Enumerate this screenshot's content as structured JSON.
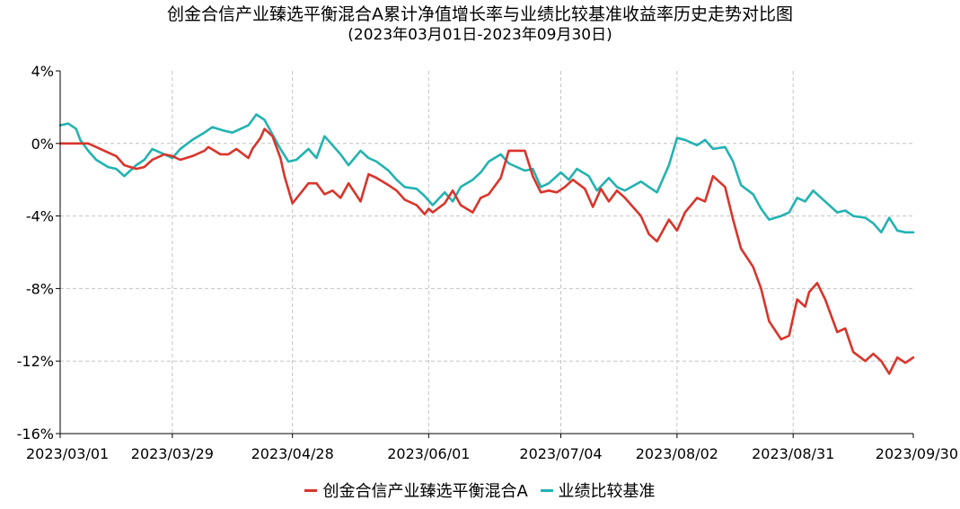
{
  "chart_data": {
    "type": "line",
    "title": "创金合信产业臻选平衡混合A累计净值增长率与业绩比较基准收益率历史走势对比图",
    "subtitle": "(2023年03月01日-2023年09月30日)",
    "x_tick_labels": [
      "2023/03/01",
      "2023/03/29",
      "2023/04/28",
      "2023/06/01",
      "2023/07/04",
      "2023/08/02",
      "2023/08/31",
      "2023/09/30"
    ],
    "y_tick_labels": [
      "4%",
      "0%",
      "-4%",
      "-8%",
      "-12%",
      "-16%"
    ],
    "y_ticks": [
      4,
      0,
      -4,
      -8,
      -12,
      -16
    ],
    "ylim": [
      -16,
      4
    ],
    "x_range": [
      "2023-03-01",
      "2023-09-30"
    ],
    "grid": true,
    "legend_position": "bottom",
    "series": [
      {
        "name": "创金合信产业臻选平衡混合A",
        "color": "#d9342b",
        "points": [
          [
            "2023-03-01",
            0.0
          ],
          [
            "2023-03-03",
            0.0
          ],
          [
            "2023-03-06",
            0.0
          ],
          [
            "2023-03-08",
            0.0
          ],
          [
            "2023-03-10",
            -0.2
          ],
          [
            "2023-03-13",
            -0.5
          ],
          [
            "2023-03-15",
            -0.7
          ],
          [
            "2023-03-17",
            -1.2
          ],
          [
            "2023-03-20",
            -1.4
          ],
          [
            "2023-03-22",
            -1.3
          ],
          [
            "2023-03-24",
            -0.9
          ],
          [
            "2023-03-27",
            -0.6
          ],
          [
            "2023-03-29",
            -0.7
          ],
          [
            "2023-03-31",
            -0.9
          ],
          [
            "2023-04-03",
            -0.7
          ],
          [
            "2023-04-06",
            -0.4
          ],
          [
            "2023-04-07",
            -0.2
          ],
          [
            "2023-04-10",
            -0.6
          ],
          [
            "2023-04-12",
            -0.6
          ],
          [
            "2023-04-14",
            -0.3
          ],
          [
            "2023-04-17",
            -0.8
          ],
          [
            "2023-04-18",
            -0.3
          ],
          [
            "2023-04-20",
            0.3
          ],
          [
            "2023-04-21",
            0.8
          ],
          [
            "2023-04-23",
            0.4
          ],
          [
            "2023-04-25",
            -0.8
          ],
          [
            "2023-04-26",
            -1.8
          ],
          [
            "2023-04-28",
            -3.3
          ],
          [
            "2023-05-02",
            -2.2
          ],
          [
            "2023-05-04",
            -2.2
          ],
          [
            "2023-05-06",
            -2.8
          ],
          [
            "2023-05-08",
            -2.6
          ],
          [
            "2023-05-10",
            -3.0
          ],
          [
            "2023-05-12",
            -2.2
          ],
          [
            "2023-05-15",
            -3.2
          ],
          [
            "2023-05-17",
            -1.7
          ],
          [
            "2023-05-19",
            -1.9
          ],
          [
            "2023-05-22",
            -2.3
          ],
          [
            "2023-05-24",
            -2.6
          ],
          [
            "2023-05-26",
            -3.1
          ],
          [
            "2023-05-29",
            -3.4
          ],
          [
            "2023-05-31",
            -3.9
          ],
          [
            "2023-06-01",
            -3.6
          ],
          [
            "2023-06-02",
            -3.8
          ],
          [
            "2023-06-05",
            -3.3
          ],
          [
            "2023-06-07",
            -2.6
          ],
          [
            "2023-06-09",
            -3.4
          ],
          [
            "2023-06-12",
            -3.8
          ],
          [
            "2023-06-14",
            -3.0
          ],
          [
            "2023-06-16",
            -2.8
          ],
          [
            "2023-06-19",
            -1.9
          ],
          [
            "2023-06-21",
            -0.4
          ],
          [
            "2023-06-25",
            -0.4
          ],
          [
            "2023-06-27",
            -1.8
          ],
          [
            "2023-06-29",
            -2.7
          ],
          [
            "2023-07-01",
            -2.6
          ],
          [
            "2023-07-03",
            -2.7
          ],
          [
            "2023-07-05",
            -2.4
          ],
          [
            "2023-07-07",
            -2.0
          ],
          [
            "2023-07-10",
            -2.5
          ],
          [
            "2023-07-12",
            -3.5
          ],
          [
            "2023-07-14",
            -2.5
          ],
          [
            "2023-07-16",
            -3.2
          ],
          [
            "2023-07-18",
            -2.6
          ],
          [
            "2023-07-20",
            -3.0
          ],
          [
            "2023-07-24",
            -4.0
          ],
          [
            "2023-07-26",
            -5.0
          ],
          [
            "2023-07-28",
            -5.4
          ],
          [
            "2023-07-31",
            -4.2
          ],
          [
            "2023-08-02",
            -4.8
          ],
          [
            "2023-08-04",
            -3.8
          ],
          [
            "2023-08-07",
            -3.0
          ],
          [
            "2023-08-09",
            -3.2
          ],
          [
            "2023-08-11",
            -1.8
          ],
          [
            "2023-08-14",
            -2.4
          ],
          [
            "2023-08-16",
            -4.2
          ],
          [
            "2023-08-18",
            -5.8
          ],
          [
            "2023-08-21",
            -6.8
          ],
          [
            "2023-08-23",
            -8.0
          ],
          [
            "2023-08-25",
            -9.8
          ],
          [
            "2023-08-28",
            -10.8
          ],
          [
            "2023-08-30",
            -10.6
          ],
          [
            "2023-09-01",
            -8.6
          ],
          [
            "2023-09-03",
            -9.0
          ],
          [
            "2023-09-04",
            -8.2
          ],
          [
            "2023-09-06",
            -7.7
          ],
          [
            "2023-09-08",
            -8.6
          ],
          [
            "2023-09-11",
            -10.4
          ],
          [
            "2023-09-13",
            -10.2
          ],
          [
            "2023-09-15",
            -11.5
          ],
          [
            "2023-09-18",
            -12.0
          ],
          [
            "2023-09-20",
            -11.6
          ],
          [
            "2023-09-22",
            -12.0
          ],
          [
            "2023-09-24",
            -12.7
          ],
          [
            "2023-09-26",
            -11.8
          ],
          [
            "2023-09-28",
            -12.1
          ],
          [
            "2023-09-30",
            -11.8
          ]
        ]
      },
      {
        "name": "业绩比较基准",
        "color": "#23b2b2",
        "points": [
          [
            "2023-03-01",
            1.0
          ],
          [
            "2023-03-03",
            1.1
          ],
          [
            "2023-03-05",
            0.8
          ],
          [
            "2023-03-06",
            0.2
          ],
          [
            "2023-03-08",
            -0.4
          ],
          [
            "2023-03-10",
            -0.9
          ],
          [
            "2023-03-13",
            -1.3
          ],
          [
            "2023-03-15",
            -1.4
          ],
          [
            "2023-03-17",
            -1.8
          ],
          [
            "2023-03-20",
            -1.2
          ],
          [
            "2023-03-22",
            -0.9
          ],
          [
            "2023-03-24",
            -0.3
          ],
          [
            "2023-03-27",
            -0.6
          ],
          [
            "2023-03-29",
            -0.8
          ],
          [
            "2023-03-31",
            -0.3
          ],
          [
            "2023-04-03",
            0.2
          ],
          [
            "2023-04-06",
            0.6
          ],
          [
            "2023-04-08",
            0.9
          ],
          [
            "2023-04-11",
            0.7
          ],
          [
            "2023-04-13",
            0.6
          ],
          [
            "2023-04-17",
            1.0
          ],
          [
            "2023-04-19",
            1.6
          ],
          [
            "2023-04-21",
            1.3
          ],
          [
            "2023-04-23",
            0.5
          ],
          [
            "2023-04-25",
            -0.3
          ],
          [
            "2023-04-27",
            -1.0
          ],
          [
            "2023-04-29",
            -0.9
          ],
          [
            "2023-05-02",
            -0.3
          ],
          [
            "2023-05-04",
            -0.8
          ],
          [
            "2023-05-06",
            0.4
          ],
          [
            "2023-05-08",
            -0.1
          ],
          [
            "2023-05-10",
            -0.6
          ],
          [
            "2023-05-12",
            -1.2
          ],
          [
            "2023-05-15",
            -0.4
          ],
          [
            "2023-05-17",
            -0.8
          ],
          [
            "2023-05-19",
            -1.0
          ],
          [
            "2023-05-22",
            -1.5
          ],
          [
            "2023-05-24",
            -2.0
          ],
          [
            "2023-05-26",
            -2.4
          ],
          [
            "2023-05-29",
            -2.5
          ],
          [
            "2023-05-31",
            -2.9
          ],
          [
            "2023-06-02",
            -3.4
          ],
          [
            "2023-06-05",
            -2.7
          ],
          [
            "2023-06-07",
            -3.2
          ],
          [
            "2023-06-09",
            -2.4
          ],
          [
            "2023-06-12",
            -2.0
          ],
          [
            "2023-06-14",
            -1.6
          ],
          [
            "2023-06-16",
            -1.0
          ],
          [
            "2023-06-19",
            -0.6
          ],
          [
            "2023-06-21",
            -1.1
          ],
          [
            "2023-06-25",
            -1.5
          ],
          [
            "2023-06-27",
            -1.4
          ],
          [
            "2023-06-29",
            -2.4
          ],
          [
            "2023-07-01",
            -2.2
          ],
          [
            "2023-07-04",
            -1.6
          ],
          [
            "2023-07-06",
            -2.0
          ],
          [
            "2023-07-08",
            -1.4
          ],
          [
            "2023-07-11",
            -1.8
          ],
          [
            "2023-07-13",
            -2.6
          ],
          [
            "2023-07-16",
            -1.9
          ],
          [
            "2023-07-18",
            -2.4
          ],
          [
            "2023-07-20",
            -2.6
          ],
          [
            "2023-07-24",
            -2.1
          ],
          [
            "2023-07-26",
            -2.4
          ],
          [
            "2023-07-28",
            -2.7
          ],
          [
            "2023-07-31",
            -1.2
          ],
          [
            "2023-08-02",
            0.3
          ],
          [
            "2023-08-04",
            0.2
          ],
          [
            "2023-08-07",
            -0.1
          ],
          [
            "2023-08-09",
            0.2
          ],
          [
            "2023-08-11",
            -0.3
          ],
          [
            "2023-08-14",
            -0.2
          ],
          [
            "2023-08-16",
            -1.0
          ],
          [
            "2023-08-18",
            -2.3
          ],
          [
            "2023-08-21",
            -2.8
          ],
          [
            "2023-08-23",
            -3.6
          ],
          [
            "2023-08-25",
            -4.2
          ],
          [
            "2023-08-28",
            -4.0
          ],
          [
            "2023-08-30",
            -3.8
          ],
          [
            "2023-09-01",
            -3.0
          ],
          [
            "2023-09-03",
            -3.2
          ],
          [
            "2023-09-05",
            -2.6
          ],
          [
            "2023-09-07",
            -3.0
          ],
          [
            "2023-09-11",
            -3.8
          ],
          [
            "2023-09-13",
            -3.7
          ],
          [
            "2023-09-15",
            -4.0
          ],
          [
            "2023-09-18",
            -4.1
          ],
          [
            "2023-09-20",
            -4.4
          ],
          [
            "2023-09-22",
            -4.9
          ],
          [
            "2023-09-24",
            -4.1
          ],
          [
            "2023-09-26",
            -4.8
          ],
          [
            "2023-09-28",
            -4.9
          ],
          [
            "2023-09-30",
            -4.9
          ]
        ]
      }
    ]
  }
}
